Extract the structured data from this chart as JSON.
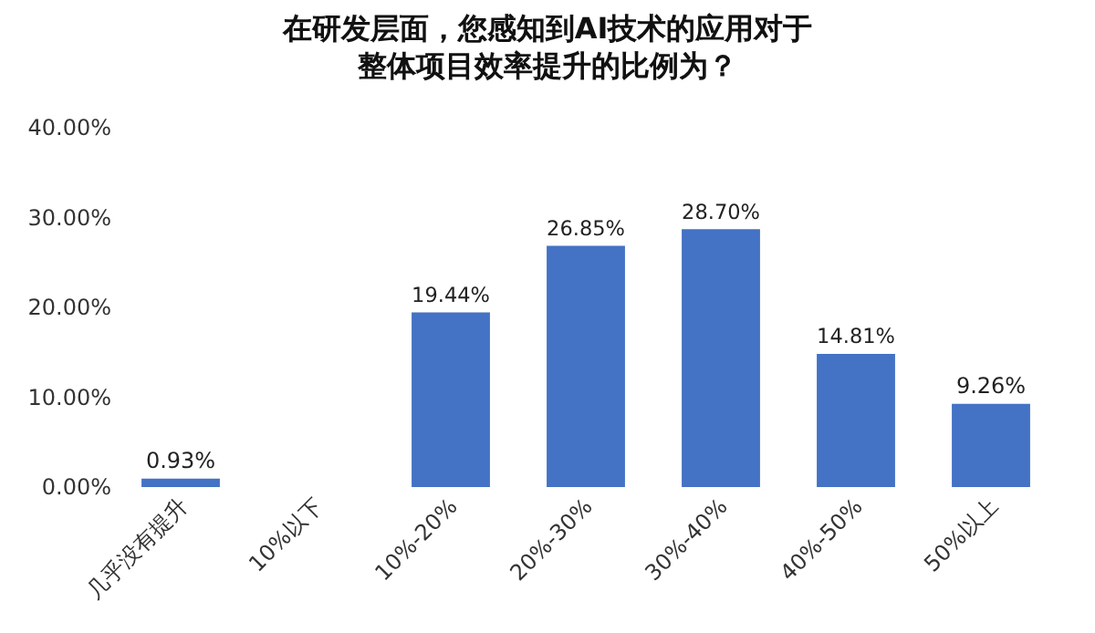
{
  "chart_data": {
    "type": "bar",
    "title": "在研发层面，您感知到AI技术的应用对于整体项目效率提升的比例为？",
    "categories": [
      "几乎没有提升",
      "10%以下",
      "10%-20%",
      "20%-30%",
      "30%-40%",
      "40%-50%",
      "50%以上"
    ],
    "values": [
      0.93,
      0,
      19.44,
      26.85,
      28.7,
      14.81,
      9.26
    ],
    "value_labels": [
      "0.93%",
      null,
      "19.44%",
      "26.85%",
      "28.70%",
      "14.81%",
      "9.26%"
    ],
    "color": "#4472c4",
    "ylim": [
      0,
      40
    ],
    "yticks": [
      {
        "value": 0,
        "label": "0.00%"
      },
      {
        "value": 10,
        "label": "10.00%"
      },
      {
        "value": 20,
        "label": "20.00%"
      },
      {
        "value": 30,
        "label": "30.00%"
      },
      {
        "value": 40,
        "label": "40.00%"
      }
    ],
    "grid": false,
    "legend": false
  }
}
